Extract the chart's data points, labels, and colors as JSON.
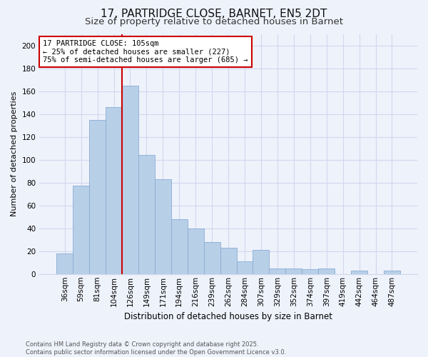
{
  "title": "17, PARTRIDGE CLOSE, BARNET, EN5 2DT",
  "subtitle": "Size of property relative to detached houses in Barnet",
  "xlabel": "Distribution of detached houses by size in Barnet",
  "ylabel": "Number of detached properties",
  "bar_labels": [
    "36sqm",
    "59sqm",
    "81sqm",
    "104sqm",
    "126sqm",
    "149sqm",
    "171sqm",
    "194sqm",
    "216sqm",
    "239sqm",
    "262sqm",
    "284sqm",
    "307sqm",
    "329sqm",
    "352sqm",
    "374sqm",
    "397sqm",
    "419sqm",
    "442sqm",
    "464sqm",
    "487sqm"
  ],
  "bar_values": [
    18,
    77,
    135,
    146,
    165,
    104,
    83,
    48,
    40,
    28,
    23,
    11,
    21,
    5,
    5,
    4,
    5,
    0,
    3,
    0,
    3
  ],
  "bar_color": "#b8cfe8",
  "vline_index": 4,
  "vline_color": "#cc0000",
  "annotation_text": "17 PARTRIDGE CLOSE: 105sqm\n← 25% of detached houses are smaller (227)\n75% of semi-detached houses are larger (685) →",
  "annotation_box_color": "#ffffff",
  "annotation_box_edge": "#cc0000",
  "ylim": [
    0,
    210
  ],
  "yticks": [
    0,
    20,
    40,
    60,
    80,
    100,
    120,
    140,
    160,
    180,
    200
  ],
  "bg_color": "#eef2fb",
  "grid_color": "#d0d8ee",
  "footer_line1": "Contains HM Land Registry data © Crown copyright and database right 2025.",
  "footer_line2": "Contains public sector information licensed under the Open Government Licence v3.0.",
  "title_fontsize": 11,
  "subtitle_fontsize": 9.5,
  "xlabel_fontsize": 8.5,
  "ylabel_fontsize": 8,
  "tick_fontsize": 7.5,
  "annotation_fontsize": 7.5,
  "footer_fontsize": 6
}
